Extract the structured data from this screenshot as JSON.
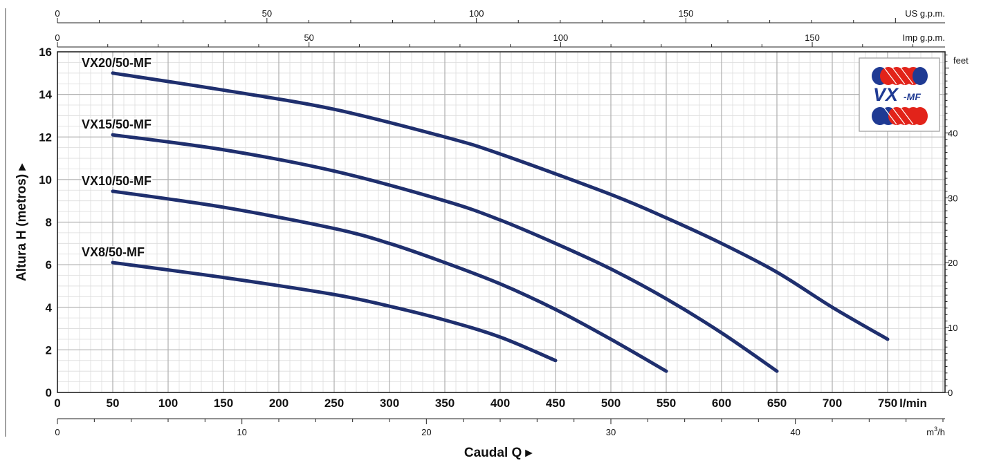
{
  "chart_data": {
    "type": "line",
    "title": "",
    "xlabel": "Caudal Q",
    "ylabel": "Altura H (metros)",
    "arrow_glyph": "▸",
    "x_unit": "l/min",
    "xlim": [
      0,
      820
    ],
    "ylim": [
      0,
      16
    ],
    "x_ticks": [
      0,
      50,
      100,
      150,
      200,
      250,
      300,
      350,
      400,
      450,
      500,
      550,
      600,
      650,
      700,
      750
    ],
    "y_ticks": [
      0,
      2,
      4,
      6,
      8,
      10,
      12,
      14,
      16
    ],
    "grid": true,
    "secondary_axes": {
      "top_us_gpm": {
        "label": "US g.p.m.",
        "ticks": [
          0,
          50,
          100,
          150
        ]
      },
      "top_imp_gpm": {
        "label": "Imp g.p.m.",
        "ticks": [
          0,
          50,
          100,
          150
        ]
      },
      "bottom_m3h": {
        "label_main": "m",
        "label_sup": "3",
        "label_tail": "/h",
        "ticks": [
          0,
          10,
          20,
          30,
          40
        ]
      },
      "right_feet": {
        "label": "feet",
        "ticks": [
          0,
          10,
          20,
          30,
          40
        ]
      }
    },
    "series": [
      {
        "name": "VX20/50-MF",
        "color": "#1f2f6e",
        "x": [
          50,
          150,
          250,
          350,
          400,
          500,
          550,
          600,
          650,
          700,
          750
        ],
        "y": [
          15.0,
          14.2,
          13.3,
          12.0,
          11.2,
          9.3,
          8.2,
          7.0,
          5.65,
          4.0,
          2.5
        ]
      },
      {
        "name": "VX15/50-MF",
        "color": "#1f2f6e",
        "x": [
          50,
          150,
          250,
          350,
          400,
          450,
          500,
          550,
          600,
          650
        ],
        "y": [
          12.1,
          11.4,
          10.4,
          9.0,
          8.1,
          7.0,
          5.8,
          4.4,
          2.8,
          1.0
        ]
      },
      {
        "name": "VX10/50-MF",
        "color": "#1f2f6e",
        "x": [
          50,
          150,
          250,
          300,
          350,
          400,
          450,
          500,
          550
        ],
        "y": [
          9.45,
          8.7,
          7.7,
          7.0,
          6.1,
          5.1,
          3.9,
          2.5,
          1.0
        ]
      },
      {
        "name": "VX8/50-MF",
        "color": "#1f2f6e",
        "x": [
          50,
          150,
          250,
          300,
          350,
          400,
          450
        ],
        "y": [
          6.1,
          5.4,
          4.6,
          4.05,
          3.4,
          2.6,
          1.5
        ]
      }
    ]
  },
  "logo": {
    "text_main": "VX",
    "text_sub": "-MF",
    "colors": {
      "red": "#e2231a",
      "blue": "#1f3a93"
    }
  }
}
